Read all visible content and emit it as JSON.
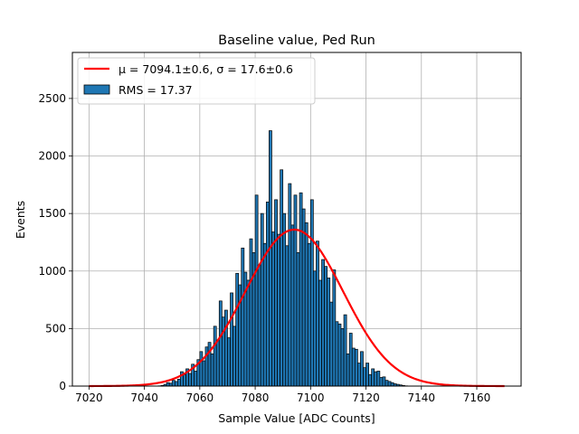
{
  "chart_data": {
    "type": "bar",
    "title": "Baseline value, Ped Run",
    "xlabel": "Sample Value [ADC Counts]",
    "ylabel": "Events",
    "xlim": [
      7014,
      7176
    ],
    "ylim": [
      0,
      2900
    ],
    "xticks": [
      7020,
      7040,
      7060,
      7080,
      7100,
      7120,
      7140,
      7160
    ],
    "yticks": [
      0,
      500,
      1000,
      1500,
      2000,
      2500
    ],
    "grid": true,
    "legend_position": "top-left",
    "legend": {
      "fit_label": "μ = 7094.1±0.6, σ = 17.6±0.6",
      "hist_label": "RMS = 17.37"
    },
    "histogram": {
      "name": "RMS = 17.37",
      "bin_start": 7045,
      "bin_width": 1,
      "counts": [
        2,
        5,
        15,
        30,
        25,
        50,
        40,
        60,
        125,
        100,
        150,
        110,
        190,
        130,
        230,
        300,
        220,
        340,
        380,
        280,
        520,
        400,
        740,
        600,
        660,
        420,
        810,
        520,
        980,
        880,
        1200,
        990,
        920,
        1280,
        1160,
        1660,
        1050,
        1500,
        1240,
        1600,
        2220,
        1340,
        1620,
        1320,
        1880,
        1500,
        1220,
        1760,
        1400,
        1660,
        1160,
        1680,
        1540,
        1420,
        1240,
        1620,
        1000,
        1260,
        920,
        1100,
        1040,
        940,
        730,
        1010,
        560,
        540,
        500,
        620,
        280,
        460,
        330,
        320,
        200,
        300,
        160,
        200,
        100,
        150,
        125,
        130,
        75,
        80,
        50,
        40,
        30,
        20,
        15,
        10,
        5,
        2
      ]
    },
    "fit": {
      "mu": 7094.1,
      "sigma": 17.6,
      "amplitude": 1360,
      "x_range": [
        7020,
        7170
      ],
      "color": "#ff0000"
    },
    "bar_color": "#1f77b4"
  }
}
